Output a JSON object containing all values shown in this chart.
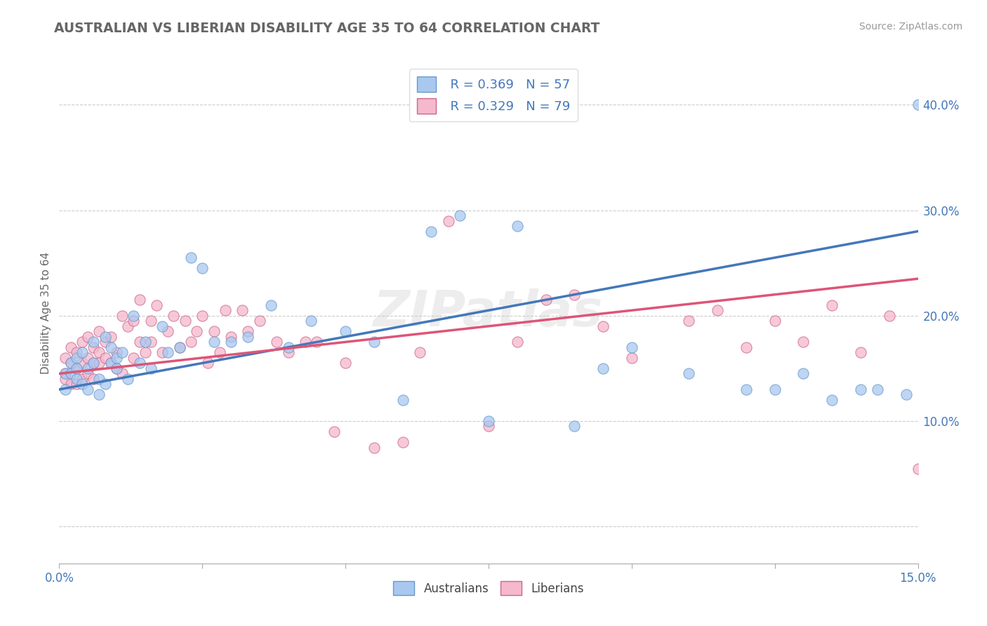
{
  "title": "AUSTRALIAN VS LIBERIAN DISABILITY AGE 35 TO 64 CORRELATION CHART",
  "source": "Source: ZipAtlas.com",
  "ylabel_label": "Disability Age 35 to 64",
  "xlim": [
    0.0,
    0.15
  ],
  "ylim": [
    -0.035,
    0.44
  ],
  "xticks": [
    0.0,
    0.025,
    0.05,
    0.075,
    0.1,
    0.125,
    0.15
  ],
  "xticklabels": [
    "0.0%",
    "",
    "",
    "",
    "",
    "",
    "15.0%"
  ],
  "yticks": [
    0.0,
    0.1,
    0.2,
    0.3,
    0.4
  ],
  "yticklabels": [
    "",
    "10.0%",
    "20.0%",
    "30.0%",
    "40.0%"
  ],
  "aus_color": "#a8c8f0",
  "lib_color": "#f5b8cc",
  "aus_edge_color": "#6699cc",
  "lib_edge_color": "#cc6688",
  "aus_line_color": "#4477bb",
  "lib_line_color": "#dd5577",
  "aus_R": 0.369,
  "aus_N": 57,
  "lib_R": 0.329,
  "lib_N": 79,
  "watermark": "ZIPatlas",
  "tick_color": "#4477bb",
  "title_color": "#666666",
  "ylabel_color": "#666666",
  "source_color": "#999999",
  "aus_x": [
    0.001,
    0.001,
    0.002,
    0.002,
    0.003,
    0.003,
    0.003,
    0.004,
    0.004,
    0.005,
    0.005,
    0.006,
    0.006,
    0.007,
    0.007,
    0.008,
    0.008,
    0.009,
    0.009,
    0.01,
    0.01,
    0.011,
    0.012,
    0.013,
    0.014,
    0.015,
    0.016,
    0.018,
    0.019,
    0.021,
    0.023,
    0.025,
    0.027,
    0.03,
    0.033,
    0.037,
    0.04,
    0.044,
    0.05,
    0.055,
    0.06,
    0.065,
    0.07,
    0.075,
    0.08,
    0.09,
    0.095,
    0.1,
    0.11,
    0.12,
    0.125,
    0.13,
    0.135,
    0.14,
    0.143,
    0.148,
    0.15
  ],
  "aus_y": [
    0.145,
    0.13,
    0.155,
    0.145,
    0.16,
    0.15,
    0.14,
    0.135,
    0.165,
    0.13,
    0.15,
    0.175,
    0.155,
    0.14,
    0.125,
    0.18,
    0.135,
    0.17,
    0.155,
    0.16,
    0.15,
    0.165,
    0.14,
    0.2,
    0.155,
    0.175,
    0.15,
    0.19,
    0.165,
    0.17,
    0.255,
    0.245,
    0.175,
    0.175,
    0.18,
    0.21,
    0.17,
    0.195,
    0.185,
    0.175,
    0.12,
    0.28,
    0.295,
    0.1,
    0.285,
    0.095,
    0.15,
    0.17,
    0.145,
    0.13,
    0.13,
    0.145,
    0.12,
    0.13,
    0.13,
    0.125,
    0.4
  ],
  "lib_x": [
    0.001,
    0.001,
    0.001,
    0.002,
    0.002,
    0.002,
    0.003,
    0.003,
    0.003,
    0.004,
    0.004,
    0.004,
    0.005,
    0.005,
    0.005,
    0.006,
    0.006,
    0.006,
    0.007,
    0.007,
    0.007,
    0.008,
    0.008,
    0.009,
    0.009,
    0.01,
    0.01,
    0.011,
    0.011,
    0.012,
    0.013,
    0.013,
    0.014,
    0.014,
    0.015,
    0.016,
    0.016,
    0.017,
    0.018,
    0.019,
    0.02,
    0.021,
    0.022,
    0.023,
    0.024,
    0.025,
    0.026,
    0.027,
    0.028,
    0.029,
    0.03,
    0.032,
    0.033,
    0.035,
    0.038,
    0.04,
    0.043,
    0.045,
    0.048,
    0.05,
    0.055,
    0.06,
    0.063,
    0.068,
    0.075,
    0.08,
    0.085,
    0.09,
    0.095,
    0.1,
    0.11,
    0.115,
    0.12,
    0.125,
    0.13,
    0.135,
    0.14,
    0.145,
    0.15
  ],
  "lib_y": [
    0.145,
    0.16,
    0.14,
    0.155,
    0.17,
    0.135,
    0.165,
    0.15,
    0.135,
    0.175,
    0.155,
    0.14,
    0.18,
    0.16,
    0.145,
    0.17,
    0.155,
    0.14,
    0.185,
    0.165,
    0.155,
    0.175,
    0.16,
    0.18,
    0.155,
    0.165,
    0.15,
    0.2,
    0.145,
    0.19,
    0.195,
    0.16,
    0.175,
    0.215,
    0.165,
    0.195,
    0.175,
    0.21,
    0.165,
    0.185,
    0.2,
    0.17,
    0.195,
    0.175,
    0.185,
    0.2,
    0.155,
    0.185,
    0.165,
    0.205,
    0.18,
    0.205,
    0.185,
    0.195,
    0.175,
    0.165,
    0.175,
    0.175,
    0.09,
    0.155,
    0.075,
    0.08,
    0.165,
    0.29,
    0.095,
    0.175,
    0.215,
    0.22,
    0.19,
    0.16,
    0.195,
    0.205,
    0.17,
    0.195,
    0.175,
    0.21,
    0.165,
    0.2,
    0.055
  ],
  "aus_trendline": [
    0.13,
    0.28
  ],
  "aus_trendline_x": [
    0.0,
    0.15
  ],
  "lib_trendline": [
    0.145,
    0.235
  ],
  "lib_trendline_x": [
    0.0,
    0.15
  ]
}
